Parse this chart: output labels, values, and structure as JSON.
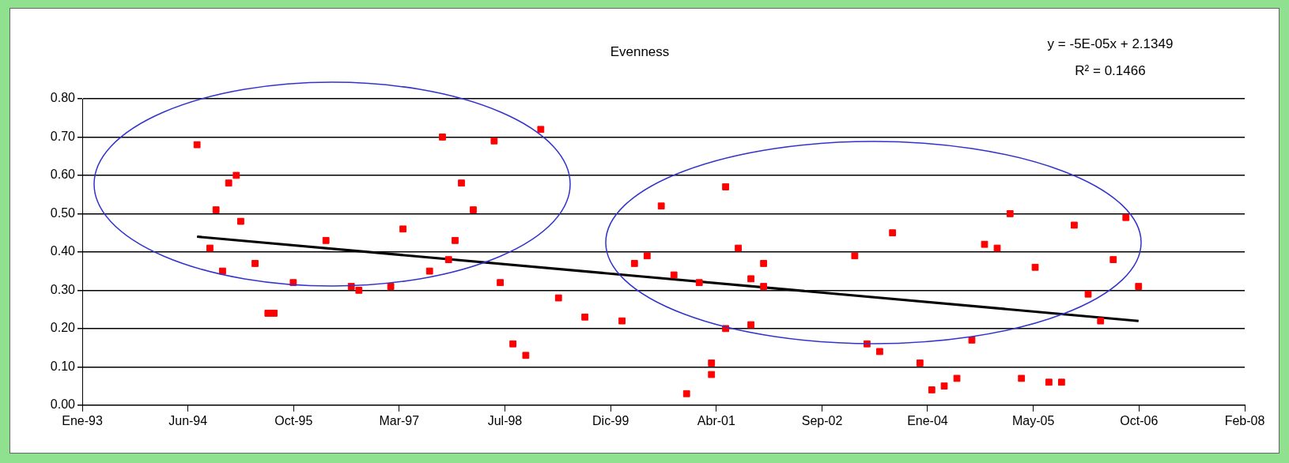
{
  "chart_data": {
    "type": "scatter",
    "title": "Evenness",
    "annotations": [
      "y = -5E-05x + 2.1349",
      "R² = 0.1466"
    ],
    "x": [
      "1994-07-24",
      "1994-09-23",
      "1994-10-22",
      "1994-11-22",
      "1994-12-21",
      "1995-01-26",
      "1995-02-16",
      "1995-04-25",
      "1995-06-25",
      "1995-07-24",
      "1995-10-23",
      "1996-03-26",
      "1996-07-24",
      "1996-08-29",
      "1997-01-27",
      "1997-03-26",
      "1997-07-30",
      "1997-09-29",
      "1997-10-28",
      "1997-11-28",
      "1997-12-28",
      "1998-02-22",
      "1998-06-01",
      "1998-06-30",
      "1998-08-29",
      "1998-10-29",
      "1999-01-08",
      "1999-04-02",
      "1999-08-05",
      "2000-01-28",
      "2000-03-27",
      "2000-05-26",
      "2000-08-01",
      "2000-09-30",
      "2000-11-29",
      "2001-01-28",
      "2001-03-27",
      "2001-03-27",
      "2001-06-02",
      "2001-06-02",
      "2001-08-01",
      "2001-09-30",
      "2001-09-30",
      "2001-11-29",
      "2001-11-29",
      "2003-02-04",
      "2003-04-03",
      "2003-06-02",
      "2003-08-02",
      "2003-12-10",
      "2004-02-04",
      "2004-04-03",
      "2004-06-02",
      "2004-08-12",
      "2004-10-11",
      "2004-12-10",
      "2005-02-09",
      "2005-04-04",
      "2005-06-08",
      "2005-08-12",
      "2005-10-11",
      "2005-12-10",
      "2006-02-14",
      "2006-04-14",
      "2006-06-13",
      "2006-08-12",
      "2006-10-11"
    ],
    "series": [
      {
        "type": "scatter",
        "color": "#ff0000",
        "marker": "square",
        "values": [
          0.68,
          0.41,
          0.51,
          0.35,
          0.58,
          0.6,
          0.48,
          0.37,
          0.24,
          0.24,
          0.32,
          0.43,
          0.31,
          0.3,
          0.31,
          0.46,
          0.35,
          0.7,
          0.38,
          0.43,
          0.58,
          0.51,
          0.69,
          0.32,
          0.16,
          0.13,
          0.72,
          0.28,
          0.23,
          0.22,
          0.37,
          0.39,
          0.52,
          0.34,
          0.03,
          0.32,
          0.11,
          0.08,
          0.2,
          0.57,
          0.41,
          0.21,
          0.33,
          0.37,
          0.31,
          0.39,
          0.16,
          0.14,
          0.45,
          0.11,
          0.04,
          0.05,
          0.07,
          0.17,
          0.42,
          0.41,
          0.5,
          0.07,
          0.36,
          0.06,
          0.06,
          0.47,
          0.29,
          0.22,
          0.38,
          0.49,
          0.31
        ]
      },
      {
        "type": "line",
        "color": "#000000",
        "marker": "none",
        "x": [
          "1994-07-24",
          "2006-10-11"
        ],
        "values": [
          0.44,
          0.22
        ]
      }
    ],
    "xlim": [
      "1993-01-26",
      "2008-02-26"
    ],
    "xticks": [
      {
        "value": "1993-01-26",
        "label": "Ene-93"
      },
      {
        "value": "1994-06-11",
        "label": "Jun-94"
      },
      {
        "value": "1995-10-25",
        "label": "Oct-95"
      },
      {
        "value": "1997-03-08",
        "label": "Mar-97"
      },
      {
        "value": "1998-07-22",
        "label": "Jul-98"
      },
      {
        "value": "1999-12-05",
        "label": "Dic-99"
      },
      {
        "value": "2001-04-19",
        "label": "Abr-01"
      },
      {
        "value": "2002-09-02",
        "label": "Sep-02"
      },
      {
        "value": "2004-01-15",
        "label": "Ene-04"
      },
      {
        "value": "2005-05-30",
        "label": "May-05"
      },
      {
        "value": "2006-10-13",
        "label": "Oct-06"
      },
      {
        "value": "2008-02-26",
        "label": "Feb-08"
      }
    ],
    "ylim": [
      0,
      0.8
    ],
    "yticks": [
      {
        "value": 0,
        "label": "0.00"
      },
      {
        "value": 0.1,
        "label": "0.10"
      },
      {
        "value": 0.2,
        "label": "0.20"
      },
      {
        "value": 0.3,
        "label": "0.30"
      },
      {
        "value": 0.4,
        "label": "0.40"
      },
      {
        "value": 0.5,
        "label": "0.50"
      },
      {
        "value": 0.6,
        "label": "0.60"
      },
      {
        "value": 0.7,
        "label": "0.70"
      },
      {
        "value": 0.8,
        "label": "0.80"
      }
    ],
    "grid": "y",
    "legend": false
  }
}
